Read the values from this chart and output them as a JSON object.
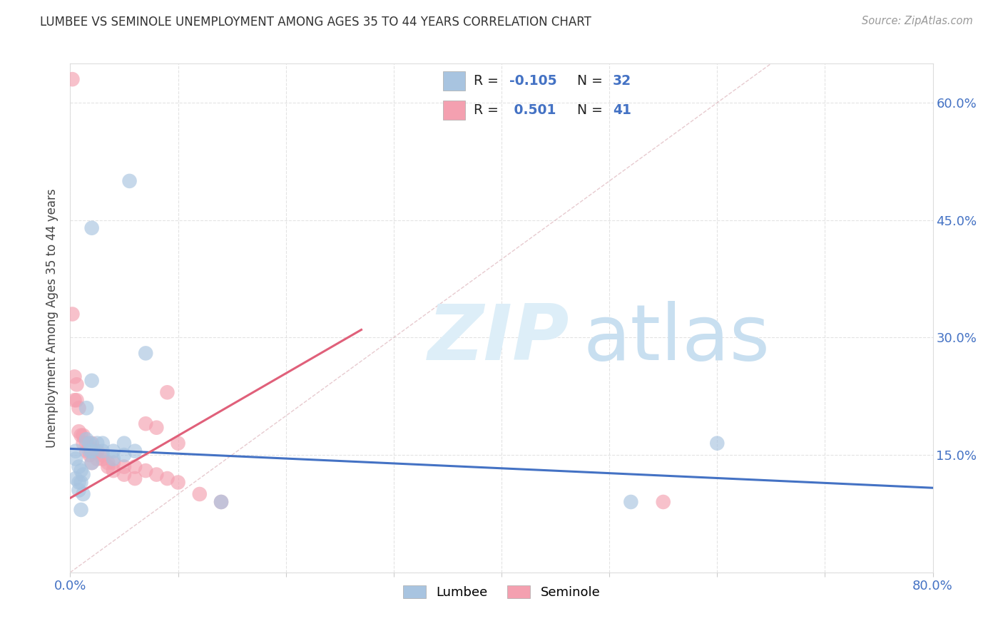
{
  "title": "LUMBEE VS SEMINOLE UNEMPLOYMENT AMONG AGES 35 TO 44 YEARS CORRELATION CHART",
  "source": "Source: ZipAtlas.com",
  "ylabel": "Unemployment Among Ages 35 to 44 years",
  "xlim": [
    0.0,
    0.8
  ],
  "ylim": [
    0.0,
    0.65
  ],
  "xticks": [
    0.0,
    0.1,
    0.2,
    0.3,
    0.4,
    0.5,
    0.6,
    0.7,
    0.8
  ],
  "xticklabels": [
    "0.0%",
    "",
    "",
    "",
    "",
    "",
    "",
    "",
    "80.0%"
  ],
  "ytick_positions": [
    0.0,
    0.15,
    0.3,
    0.45,
    0.6
  ],
  "yticklabels_right": [
    "",
    "15.0%",
    "30.0%",
    "45.0%",
    "60.0%"
  ],
  "lumbee_R": "-0.105",
  "lumbee_N": "32",
  "seminole_R": "0.501",
  "seminole_N": "41",
  "lumbee_color": "#a8c4e0",
  "seminole_color": "#f4a0b0",
  "lumbee_line_color": "#4472c4",
  "seminole_line_color": "#e0607a",
  "diagonal_color": "#cccccc",
  "background_color": "#ffffff",
  "lumbee_points": [
    [
      0.005,
      0.155
    ],
    [
      0.005,
      0.145
    ],
    [
      0.005,
      0.12
    ],
    [
      0.008,
      0.135
    ],
    [
      0.008,
      0.115
    ],
    [
      0.008,
      0.105
    ],
    [
      0.01,
      0.13
    ],
    [
      0.01,
      0.115
    ],
    [
      0.01,
      0.08
    ],
    [
      0.012,
      0.125
    ],
    [
      0.012,
      0.1
    ],
    [
      0.015,
      0.21
    ],
    [
      0.015,
      0.17
    ],
    [
      0.018,
      0.165
    ],
    [
      0.018,
      0.155
    ],
    [
      0.02,
      0.245
    ],
    [
      0.02,
      0.155
    ],
    [
      0.02,
      0.14
    ],
    [
      0.025,
      0.165
    ],
    [
      0.03,
      0.165
    ],
    [
      0.03,
      0.155
    ],
    [
      0.04,
      0.155
    ],
    [
      0.04,
      0.145
    ],
    [
      0.05,
      0.165
    ],
    [
      0.05,
      0.15
    ],
    [
      0.06,
      0.155
    ],
    [
      0.07,
      0.28
    ],
    [
      0.02,
      0.44
    ],
    [
      0.055,
      0.5
    ],
    [
      0.14,
      0.09
    ],
    [
      0.52,
      0.09
    ],
    [
      0.6,
      0.165
    ]
  ],
  "seminole_points": [
    [
      0.002,
      0.63
    ],
    [
      0.002,
      0.33
    ],
    [
      0.004,
      0.25
    ],
    [
      0.004,
      0.22
    ],
    [
      0.006,
      0.24
    ],
    [
      0.006,
      0.22
    ],
    [
      0.008,
      0.21
    ],
    [
      0.008,
      0.18
    ],
    [
      0.01,
      0.175
    ],
    [
      0.012,
      0.175
    ],
    [
      0.012,
      0.165
    ],
    [
      0.015,
      0.165
    ],
    [
      0.015,
      0.155
    ],
    [
      0.018,
      0.16
    ],
    [
      0.018,
      0.15
    ],
    [
      0.02,
      0.165
    ],
    [
      0.02,
      0.155
    ],
    [
      0.02,
      0.14
    ],
    [
      0.025,
      0.155
    ],
    [
      0.025,
      0.145
    ],
    [
      0.03,
      0.15
    ],
    [
      0.03,
      0.145
    ],
    [
      0.035,
      0.14
    ],
    [
      0.035,
      0.135
    ],
    [
      0.04,
      0.14
    ],
    [
      0.04,
      0.13
    ],
    [
      0.05,
      0.135
    ],
    [
      0.05,
      0.125
    ],
    [
      0.06,
      0.135
    ],
    [
      0.06,
      0.12
    ],
    [
      0.07,
      0.19
    ],
    [
      0.07,
      0.13
    ],
    [
      0.08,
      0.185
    ],
    [
      0.08,
      0.125
    ],
    [
      0.09,
      0.23
    ],
    [
      0.09,
      0.12
    ],
    [
      0.1,
      0.165
    ],
    [
      0.1,
      0.115
    ],
    [
      0.12,
      0.1
    ],
    [
      0.14,
      0.09
    ],
    [
      0.55,
      0.09
    ]
  ],
  "lumbee_line": [
    0.0,
    0.8
  ],
  "lumbee_line_y": [
    0.158,
    0.108
  ],
  "seminole_line_x": [
    0.0,
    0.27
  ],
  "seminole_line_y": [
    0.095,
    0.31
  ],
  "figsize": [
    14.06,
    8.92
  ],
  "dpi": 100
}
